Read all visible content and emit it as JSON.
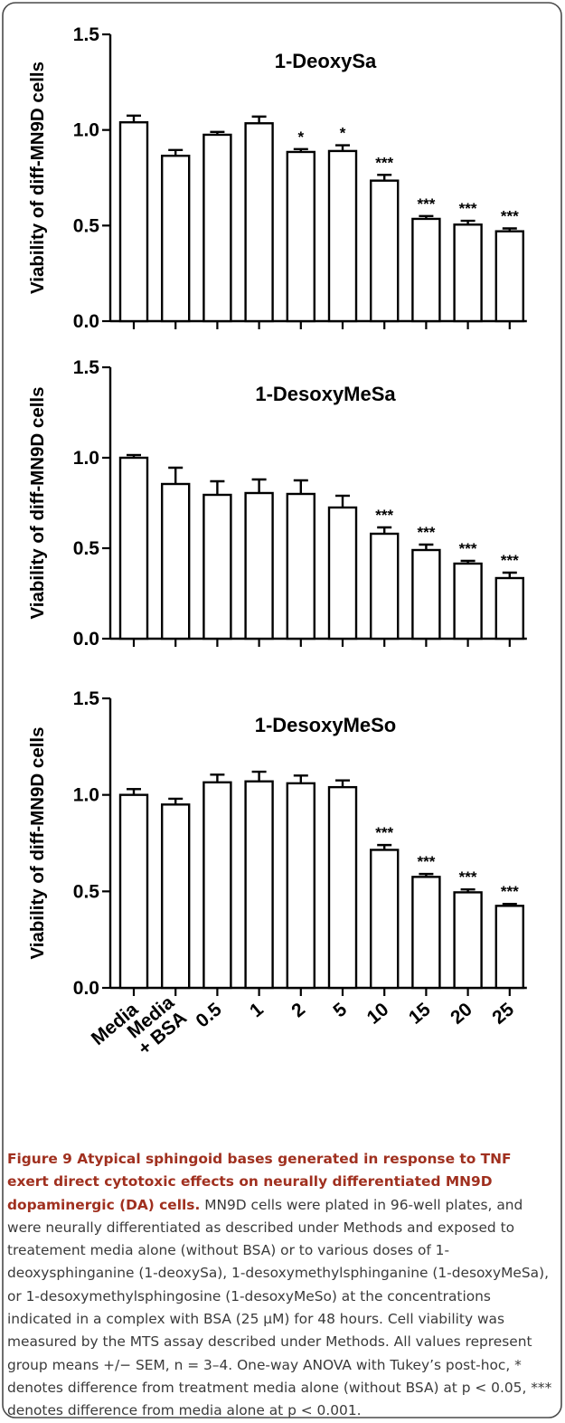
{
  "shared": {
    "ylabel": "Viability of diff-MN9D cells",
    "yticks": [
      0.0,
      0.5,
      1.0,
      1.5
    ],
    "ylim": [
      0,
      1.5
    ],
    "categories": [
      "Media",
      "Media + BSA",
      "0.5",
      "1",
      "2",
      "5",
      "10",
      "15",
      "20",
      "25"
    ]
  },
  "chart_data": [
    {
      "type": "bar",
      "title": "1-DeoxySa",
      "categories": [
        "Media",
        "Media + BSA",
        "0.5",
        "1",
        "2",
        "5",
        "10",
        "15",
        "20",
        "25"
      ],
      "values": [
        1.04,
        0.865,
        0.975,
        1.035,
        0.885,
        0.89,
        0.735,
        0.535,
        0.505,
        0.47
      ],
      "errors": [
        0.035,
        0.03,
        0.015,
        0.035,
        0.015,
        0.03,
        0.03,
        0.015,
        0.02,
        0.015
      ],
      "significance": [
        "",
        "",
        "",
        "",
        "*",
        "*",
        "***",
        "***",
        "***",
        "***"
      ],
      "ylabel": "Viability of diff-MN9D cells",
      "ylim": [
        0,
        1.5
      ]
    },
    {
      "type": "bar",
      "title": "1-DesoxyMeSa",
      "categories": [
        "Media",
        "Media + BSA",
        "0.5",
        "1",
        "2",
        "5",
        "10",
        "15",
        "20",
        "25"
      ],
      "values": [
        1.0,
        0.855,
        0.795,
        0.805,
        0.8,
        0.725,
        0.58,
        0.49,
        0.415,
        0.335
      ],
      "errors": [
        0.015,
        0.09,
        0.075,
        0.075,
        0.075,
        0.065,
        0.035,
        0.03,
        0.015,
        0.03
      ],
      "significance": [
        "",
        "",
        "",
        "",
        "",
        "",
        "***",
        "***",
        "***",
        "***"
      ],
      "ylabel": "Viability of diff-MN9D cells",
      "ylim": [
        0,
        1.5
      ]
    },
    {
      "type": "bar",
      "title": "1-DesoxyMeSo",
      "categories": [
        "Media",
        "Media + BSA",
        "0.5",
        "1",
        "2",
        "5",
        "10",
        "15",
        "20",
        "25"
      ],
      "values": [
        1.0,
        0.95,
        1.065,
        1.07,
        1.06,
        1.04,
        0.715,
        0.575,
        0.495,
        0.425
      ],
      "errors": [
        0.03,
        0.03,
        0.04,
        0.05,
        0.04,
        0.035,
        0.025,
        0.015,
        0.015,
        0.01
      ],
      "significance": [
        "",
        "",
        "",
        "",
        "",
        "",
        "***",
        "***",
        "***",
        "***"
      ],
      "ylabel": "Viability of diff-MN9D cells",
      "ylim": [
        0,
        1.5
      ]
    }
  ],
  "caption": {
    "lead": "Figure 9 Atypical sphingoid bases generated in response to TNF exert direct cytotoxic effects on neurally differentiated MN9D dopaminergic (DA) cells.",
    "body": " MN9D cells were plated in 96-well plates, and were neurally differentiated as described under Methods and exposed to treatement media alone (without BSA) or to various doses of 1-deoxysphinganine (1-deoxySa), 1-desoxymethylsphinganine (1-desoxyMeSa), or 1-desoxymethylsphingosine (1-desoxyMeSo) at the concentrations indicated in a complex with BSA (25 μM) for 48 hours. Cell viability was measured by the MTS assay described under Methods. All values represent group means +/− SEM, n = 3–4. One-way ANOVA with Tukey’s post-hoc, * denotes difference from treatment media alone (without BSA) at p < 0.05, *** denotes difference from media alone at p < 0.001."
  }
}
